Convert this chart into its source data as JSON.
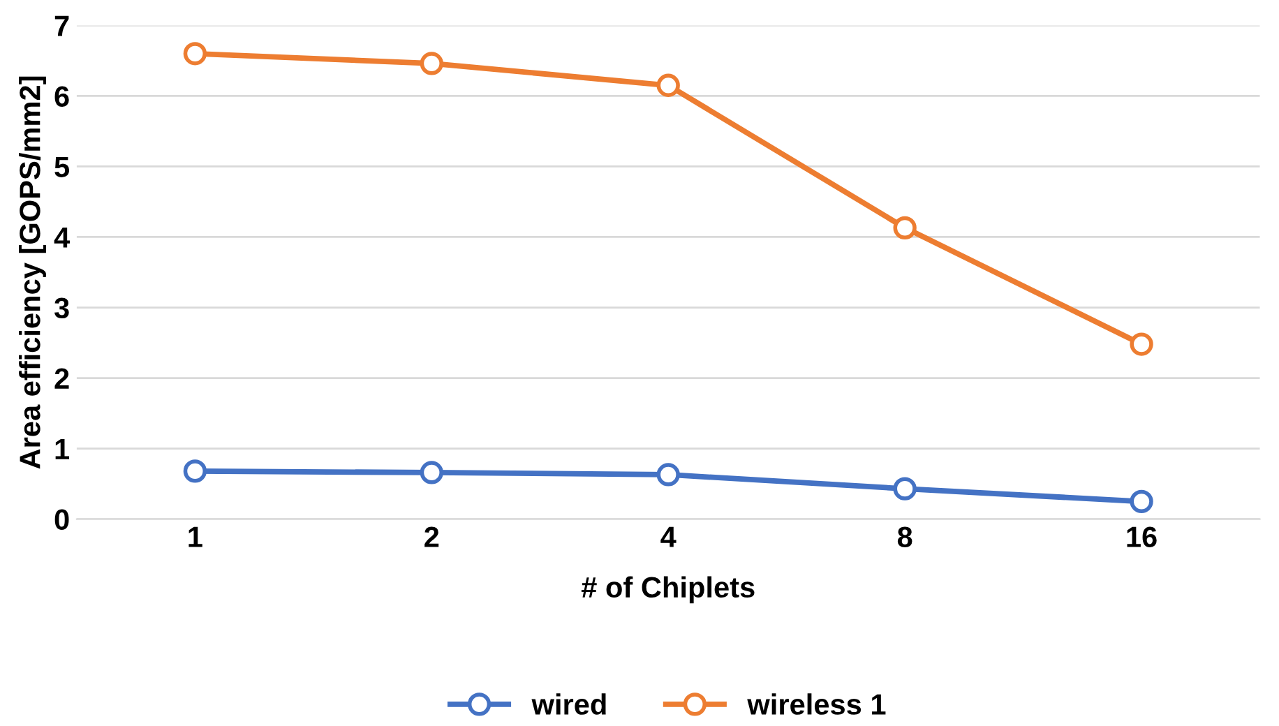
{
  "chart_data": {
    "type": "line",
    "xlabel": "# of Chiplets",
    "ylabel": "Area efficiency [GOPS/mm2]",
    "categories": [
      "1",
      "2",
      "4",
      "8",
      "16"
    ],
    "series": [
      {
        "name": "wired",
        "color": "#4472c4",
        "values": [
          0.68,
          0.66,
          0.63,
          0.43,
          0.25
        ]
      },
      {
        "name": "wireless 1",
        "color": "#ed7d31",
        "values": [
          6.6,
          6.46,
          6.15,
          4.13,
          2.48
        ]
      }
    ],
    "ylim": [
      0,
      7
    ],
    "yticks": [
      0,
      1,
      2,
      3,
      4,
      5,
      6,
      7
    ],
    "grid": "y",
    "legend": "bottom",
    "marker": "circle"
  }
}
